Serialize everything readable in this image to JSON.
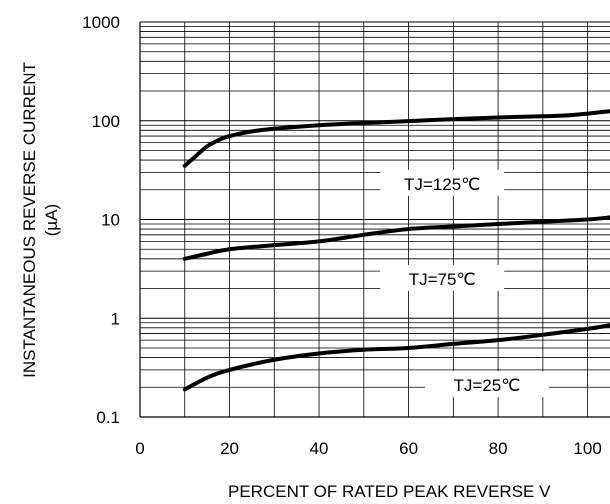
{
  "chart_data": {
    "type": "line",
    "title": "",
    "xlabel": "PERCENT OF RATED PEAK REVERSE V",
    "ylabel_line1": "INSTANTANEOUS REVERSE CURRENT",
    "ylabel_line2": "(µA)",
    "xlim": [
      0,
      105
    ],
    "ylim": [
      0.1,
      1000
    ],
    "yscale": "log",
    "grid": true,
    "x_ticks": [
      "0",
      "20",
      "40",
      "60",
      "80",
      "100"
    ],
    "y_ticks": [
      "1000",
      "100",
      "10",
      "1",
      "0.1"
    ],
    "series": [
      {
        "name": "TJ=125℃",
        "x": [
          10,
          12,
          15,
          18,
          20,
          25,
          30,
          40,
          50,
          60,
          70,
          80,
          90,
          95,
          100,
          105
        ],
        "y": [
          35,
          42,
          55,
          65,
          70,
          78,
          83,
          90,
          95,
          99,
          104,
          108,
          111,
          113,
          118,
          125
        ]
      },
      {
        "name": "TJ=75℃",
        "x": [
          10,
          15,
          20,
          30,
          40,
          50,
          60,
          70,
          80,
          90,
          100,
          105
        ],
        "y": [
          4.0,
          4.5,
          5.0,
          5.5,
          6.0,
          7.0,
          8.0,
          8.5,
          9.0,
          9.5,
          10.0,
          10.5
        ]
      },
      {
        "name": "TJ=25℃",
        "x": [
          10,
          15,
          20,
          30,
          40,
          50,
          60,
          70,
          80,
          90,
          100,
          105
        ],
        "y": [
          0.19,
          0.25,
          0.3,
          0.38,
          0.44,
          0.48,
          0.5,
          0.55,
          0.6,
          0.68,
          0.78,
          0.85
        ]
      }
    ]
  }
}
